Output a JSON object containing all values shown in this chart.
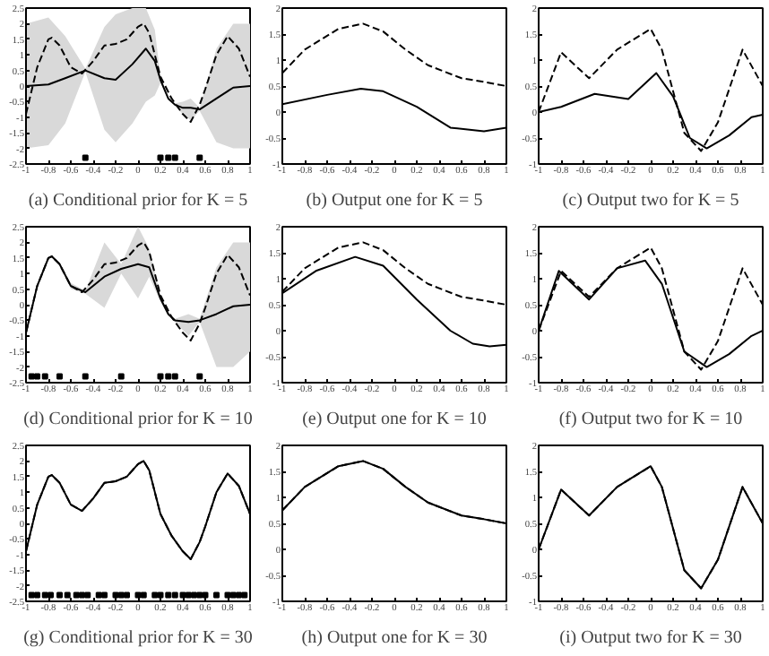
{
  "chart_data": [
    {
      "type": "line",
      "title": "(a) Conditional prior for K = 5",
      "xlim": [
        -1,
        1
      ],
      "ylim": [
        -2.5,
        2.5
      ],
      "xticks": [
        -1,
        -0.8,
        -0.6,
        -0.4,
        -0.2,
        0,
        0.2,
        0.4,
        0.6,
        0.8,
        1
      ],
      "yticks": [
        -2.5,
        -2,
        -1.5,
        -1,
        -0.5,
        0,
        0.5,
        1,
        1.5,
        2,
        2.5
      ],
      "grid": false,
      "series": [
        {
          "color": "#000000",
          "line_style": "solid",
          "x": [
            -1,
            -0.8,
            -0.65,
            -0.47,
            -0.3,
            -0.2,
            -0.05,
            0.07,
            0.15,
            0.2,
            0.27,
            0.33,
            0.4,
            0.47,
            0.55,
            0.7,
            0.85,
            1
          ],
          "values": [
            0,
            0.05,
            0.25,
            0.5,
            0.25,
            0.2,
            0.7,
            1.2,
            0.8,
            0.2,
            -0.4,
            -0.6,
            -0.7,
            -0.7,
            -0.75,
            -0.4,
            -0.05,
            0
          ],
          "lower": [
            -2,
            -1.9,
            -1.2,
            0.45,
            -1.4,
            -1.8,
            -1.2,
            -0.5,
            -0.3,
            0.1,
            -0.45,
            -0.65,
            -0.9,
            -1.1,
            -0.8,
            -1.8,
            -2,
            -2
          ],
          "upper": [
            2,
            2.2,
            1.6,
            0.55,
            1.9,
            2.3,
            2.5,
            2.5,
            1.8,
            0.3,
            -0.35,
            -0.55,
            -0.5,
            -0.4,
            -0.7,
            1.2,
            2,
            2
          ]
        },
        {
          "color": "#000000",
          "line_style": "dashed",
          "x": [
            -1,
            -0.9,
            -0.8,
            -0.77,
            -0.7,
            -0.6,
            -0.5,
            -0.4,
            -0.3,
            -0.2,
            -0.1,
            0,
            0.05,
            0.1,
            0.2,
            0.3,
            0.4,
            0.47,
            0.55,
            0.6,
            0.7,
            0.8,
            0.9,
            1
          ],
          "values": [
            -0.9,
            0.6,
            1.5,
            1.55,
            1.3,
            0.6,
            0.4,
            0.8,
            1.3,
            1.35,
            1.5,
            1.9,
            2.0,
            1.7,
            0.3,
            -0.4,
            -0.9,
            -1.15,
            -0.6,
            -0.1,
            1.0,
            1.6,
            1.2,
            0.3
          ]
        },
        {
          "type": "scatter",
          "marker": "square",
          "color": "#000000",
          "x": [
            -0.47,
            0.2,
            0.27,
            0.33,
            0.55
          ],
          "values": [
            -2.3,
            -2.3,
            -2.3,
            -2.3,
            -2.3
          ]
        }
      ]
    },
    {
      "type": "line",
      "title": "(b) Output one for K = 5",
      "xlim": [
        -1,
        1
      ],
      "ylim": [
        -1,
        2
      ],
      "xticks": [
        -1,
        -0.8,
        -0.6,
        -0.4,
        -0.2,
        0,
        0.2,
        0.4,
        0.6,
        0.8,
        1
      ],
      "yticks": [
        -1,
        -0.5,
        0,
        0.5,
        1,
        1.5,
        2
      ],
      "grid": false,
      "series": [
        {
          "color": "#000000",
          "line_style": "solid",
          "x": [
            -1,
            -0.6,
            -0.3,
            -0.1,
            0.2,
            0.5,
            0.8,
            1
          ],
          "values": [
            0.15,
            0.33,
            0.45,
            0.4,
            0.1,
            -0.3,
            -0.37,
            -0.3
          ]
        },
        {
          "color": "#000000",
          "line_style": "dashed",
          "x": [
            -1,
            -0.8,
            -0.5,
            -0.28,
            -0.1,
            0.1,
            0.3,
            0.6,
            0.8,
            1
          ],
          "values": [
            0.75,
            1.2,
            1.6,
            1.7,
            1.55,
            1.2,
            0.9,
            0.65,
            0.58,
            0.5
          ]
        }
      ]
    },
    {
      "type": "line",
      "title": "(c) Output two for K = 5",
      "xlim": [
        -1,
        1
      ],
      "ylim": [
        -1,
        2
      ],
      "xticks": [
        -1,
        -0.8,
        -0.6,
        -0.4,
        -0.2,
        0,
        0.2,
        0.4,
        0.6,
        0.8,
        1
      ],
      "yticks": [
        -1,
        -0.5,
        0,
        0.5,
        1,
        1.5,
        2
      ],
      "grid": false,
      "series": [
        {
          "color": "#000000",
          "line_style": "solid",
          "x": [
            -1,
            -0.8,
            -0.5,
            -0.2,
            0.05,
            0.2,
            0.35,
            0.5,
            0.7,
            0.9,
            1
          ],
          "values": [
            0,
            0.1,
            0.35,
            0.25,
            0.75,
            0.3,
            -0.5,
            -0.7,
            -0.45,
            -0.1,
            -0.05
          ]
        },
        {
          "color": "#000000",
          "line_style": "dashed",
          "x": [
            -1,
            -0.8,
            -0.55,
            -0.3,
            0,
            0.1,
            0.3,
            0.45,
            0.6,
            0.82,
            1
          ],
          "values": [
            0,
            1.15,
            0.65,
            1.2,
            1.6,
            1.2,
            -0.4,
            -0.75,
            -0.2,
            1.2,
            0.5
          ]
        }
      ]
    },
    {
      "type": "line",
      "title": "(d) Conditional prior for K = 10",
      "xlim": [
        -1,
        1
      ],
      "ylim": [
        -2.5,
        2.5
      ],
      "xticks": [
        -1,
        -0.8,
        -0.6,
        -0.4,
        -0.2,
        0,
        0.2,
        0.4,
        0.6,
        0.8,
        1
      ],
      "yticks": [
        -2.5,
        -2,
        -1.5,
        -1,
        -0.5,
        0,
        0.5,
        1,
        1.5,
        2,
        2.5
      ],
      "grid": false,
      "series": [
        {
          "color": "#000000",
          "line_style": "solid",
          "x": [
            -1,
            -0.9,
            -0.8,
            -0.77,
            -0.7,
            -0.6,
            -0.47,
            -0.3,
            -0.15,
            0,
            0.1,
            0.2,
            0.27,
            0.33,
            0.45,
            0.55,
            0.7,
            0.85,
            1
          ],
          "values": [
            -0.9,
            0.6,
            1.5,
            1.55,
            1.3,
            0.6,
            0.4,
            0.9,
            1.15,
            1.3,
            1.2,
            0.2,
            -0.3,
            -0.5,
            -0.55,
            -0.5,
            -0.3,
            -0.05,
            0
          ],
          "lower": [
            -0.9,
            0.6,
            1.5,
            1.55,
            1.3,
            0.5,
            0.35,
            -0.1,
            1.0,
            0.2,
            0.9,
            0.1,
            -0.35,
            -0.55,
            -1.0,
            -0.55,
            -2,
            -2,
            -1.5
          ],
          "upper": [
            -0.9,
            0.6,
            1.5,
            1.55,
            1.3,
            0.7,
            0.45,
            2.0,
            1.3,
            2.5,
            1.8,
            0.3,
            -0.25,
            -0.45,
            -0.3,
            -0.45,
            1.2,
            2.0,
            2.0
          ]
        },
        {
          "color": "#000000",
          "line_style": "dashed",
          "x": [
            -1,
            -0.9,
            -0.8,
            -0.77,
            -0.7,
            -0.6,
            -0.5,
            -0.4,
            -0.3,
            -0.2,
            -0.1,
            0,
            0.05,
            0.1,
            0.2,
            0.3,
            0.4,
            0.47,
            0.55,
            0.6,
            0.7,
            0.8,
            0.9,
            1
          ],
          "values": [
            -0.9,
            0.6,
            1.5,
            1.55,
            1.3,
            0.6,
            0.4,
            0.8,
            1.3,
            1.35,
            1.5,
            1.9,
            2.0,
            1.7,
            0.3,
            -0.4,
            -0.9,
            -1.15,
            -0.6,
            -0.1,
            1.0,
            1.6,
            1.2,
            0.3
          ]
        },
        {
          "type": "scatter",
          "marker": "square",
          "color": "#000000",
          "x": [
            -0.95,
            -0.9,
            -0.83,
            -0.7,
            -0.47,
            -0.15,
            0.2,
            0.27,
            0.33,
            0.55
          ],
          "values": [
            -2.3,
            -2.3,
            -2.3,
            -2.3,
            -2.3,
            -2.3,
            -2.3,
            -2.3,
            -2.3,
            -2.3
          ]
        }
      ]
    },
    {
      "type": "line",
      "title": "(e) Output one for K = 10",
      "xlim": [
        -1,
        1
      ],
      "ylim": [
        -1,
        2
      ],
      "xticks": [
        -1,
        -0.8,
        -0.6,
        -0.4,
        -0.2,
        0,
        0.2,
        0.4,
        0.6,
        0.8,
        1
      ],
      "yticks": [
        -1,
        -0.5,
        0,
        0.5,
        1,
        1.5,
        2
      ],
      "grid": false,
      "series": [
        {
          "color": "#000000",
          "line_style": "solid",
          "x": [
            -1,
            -0.7,
            -0.35,
            -0.1,
            0.2,
            0.5,
            0.7,
            0.85,
            1
          ],
          "values": [
            0.72,
            1.15,
            1.42,
            1.25,
            0.6,
            0.0,
            -0.25,
            -0.3,
            -0.27
          ]
        },
        {
          "color": "#000000",
          "line_style": "dashed",
          "x": [
            -1,
            -0.8,
            -0.5,
            -0.28,
            -0.1,
            0.1,
            0.3,
            0.6,
            0.8,
            1
          ],
          "values": [
            0.75,
            1.2,
            1.6,
            1.7,
            1.55,
            1.2,
            0.9,
            0.65,
            0.58,
            0.5
          ]
        }
      ]
    },
    {
      "type": "line",
      "title": "(f) Output two for K = 10",
      "xlim": [
        -1,
        1
      ],
      "ylim": [
        -1,
        2
      ],
      "xticks": [
        -1,
        -0.8,
        -0.6,
        -0.4,
        -0.2,
        0,
        0.2,
        0.4,
        0.6,
        0.8,
        1
      ],
      "yticks": [
        -1,
        -0.5,
        0,
        0.5,
        1,
        1.5,
        2
      ],
      "grid": false,
      "series": [
        {
          "color": "#000000",
          "line_style": "solid",
          "x": [
            -1,
            -0.82,
            -0.55,
            -0.3,
            -0.05,
            0.1,
            0.3,
            0.5,
            0.7,
            0.9,
            1
          ],
          "values": [
            0,
            1.15,
            0.6,
            1.2,
            1.35,
            0.9,
            -0.4,
            -0.7,
            -0.45,
            -0.1,
            0
          ]
        },
        {
          "color": "#000000",
          "line_style": "dashed",
          "x": [
            -1,
            -0.8,
            -0.55,
            -0.3,
            0,
            0.1,
            0.3,
            0.45,
            0.6,
            0.82,
            1
          ],
          "values": [
            0,
            1.15,
            0.65,
            1.2,
            1.6,
            1.2,
            -0.4,
            -0.75,
            -0.2,
            1.2,
            0.5
          ]
        }
      ]
    },
    {
      "type": "line",
      "title": "(g) Conditional prior for K = 30",
      "xlim": [
        -1,
        1
      ],
      "ylim": [
        -2.5,
        2.5
      ],
      "xticks": [
        -1,
        -0.8,
        -0.6,
        -0.4,
        -0.2,
        0,
        0.2,
        0.4,
        0.6,
        0.8,
        1
      ],
      "yticks": [
        -2.5,
        -2,
        -1.5,
        -1,
        -0.5,
        0,
        0.5,
        1,
        1.5,
        2,
        2.5
      ],
      "grid": false,
      "series": [
        {
          "color": "#000000",
          "line_style": "solid",
          "x": [
            -1,
            -0.9,
            -0.8,
            -0.77,
            -0.7,
            -0.6,
            -0.5,
            -0.4,
            -0.3,
            -0.2,
            -0.1,
            0,
            0.05,
            0.1,
            0.2,
            0.3,
            0.4,
            0.47,
            0.55,
            0.6,
            0.7,
            0.8,
            0.9,
            1
          ],
          "values": [
            -0.9,
            0.6,
            1.5,
            1.55,
            1.3,
            0.6,
            0.4,
            0.8,
            1.3,
            1.35,
            1.5,
            1.9,
            2.0,
            1.7,
            0.3,
            -0.4,
            -0.9,
            -1.15,
            -0.6,
            -0.1,
            1.0,
            1.6,
            1.2,
            0.3
          ]
        },
        {
          "color": "#000000",
          "line_style": "dashed",
          "x": [
            -1,
            -0.9,
            -0.8,
            -0.77,
            -0.7,
            -0.6,
            -0.5,
            -0.4,
            -0.3,
            -0.2,
            -0.1,
            0,
            0.05,
            0.1,
            0.2,
            0.3,
            0.4,
            0.47,
            0.55,
            0.6,
            0.7,
            0.8,
            0.9,
            1
          ],
          "values": [
            -0.9,
            0.6,
            1.5,
            1.55,
            1.3,
            0.6,
            0.4,
            0.8,
            1.3,
            1.35,
            1.5,
            1.9,
            2.0,
            1.7,
            0.3,
            -0.4,
            -0.9,
            -1.15,
            -0.6,
            -0.1,
            1.0,
            1.6,
            1.2,
            0.3
          ]
        },
        {
          "type": "scatter",
          "marker": "square",
          "color": "#000000",
          "x": [
            -0.95,
            -0.9,
            -0.83,
            -0.78,
            -0.7,
            -0.63,
            -0.55,
            -0.5,
            -0.45,
            -0.35,
            -0.3,
            -0.2,
            -0.15,
            -0.1,
            0,
            0.05,
            0.15,
            0.2,
            0.27,
            0.33,
            0.4,
            0.45,
            0.5,
            0.55,
            0.6,
            0.7,
            0.8,
            0.85,
            0.9,
            0.95
          ],
          "values": [
            -2.3,
            -2.3,
            -2.3,
            -2.3,
            -2.3,
            -2.3,
            -2.3,
            -2.3,
            -2.3,
            -2.3,
            -2.3,
            -2.3,
            -2.3,
            -2.3,
            -2.3,
            -2.3,
            -2.3,
            -2.3,
            -2.3,
            -2.3,
            -2.3,
            -2.3,
            -2.3,
            -2.3,
            -2.3,
            -2.3,
            -2.3,
            -2.3,
            -2.3,
            -2.3
          ]
        }
      ]
    },
    {
      "type": "line",
      "title": "(h) Output one for K = 30",
      "xlim": [
        -1,
        1
      ],
      "ylim": [
        -1,
        2
      ],
      "xticks": [
        -1,
        -0.8,
        -0.6,
        -0.4,
        -0.2,
        0,
        0.2,
        0.4,
        0.6,
        0.8,
        1
      ],
      "yticks": [
        -1,
        -0.5,
        0,
        0.5,
        1,
        1.5,
        2
      ],
      "grid": false,
      "series": [
        {
          "color": "#000000",
          "line_style": "solid",
          "x": [
            -1,
            -0.8,
            -0.5,
            -0.28,
            -0.1,
            0.1,
            0.3,
            0.6,
            0.8,
            1
          ],
          "values": [
            0.75,
            1.2,
            1.6,
            1.7,
            1.55,
            1.2,
            0.9,
            0.65,
            0.58,
            0.5
          ]
        },
        {
          "color": "#000000",
          "line_style": "dashed",
          "x": [
            -1,
            -0.8,
            -0.5,
            -0.28,
            -0.1,
            0.1,
            0.3,
            0.6,
            0.8,
            1
          ],
          "values": [
            0.75,
            1.2,
            1.6,
            1.7,
            1.55,
            1.2,
            0.9,
            0.65,
            0.58,
            0.5
          ]
        }
      ]
    },
    {
      "type": "line",
      "title": "(i) Output two for K = 30",
      "xlim": [
        -1,
        1
      ],
      "ylim": [
        -1,
        2
      ],
      "xticks": [
        -1,
        -0.8,
        -0.6,
        -0.4,
        -0.2,
        0,
        0.2,
        0.4,
        0.6,
        0.8,
        1
      ],
      "yticks": [
        -1,
        -0.5,
        0,
        0.5,
        1,
        1.5,
        2
      ],
      "grid": false,
      "series": [
        {
          "color": "#000000",
          "line_style": "solid",
          "x": [
            -1,
            -0.8,
            -0.55,
            -0.3,
            0,
            0.1,
            0.3,
            0.45,
            0.6,
            0.82,
            1
          ],
          "values": [
            0,
            1.15,
            0.65,
            1.2,
            1.6,
            1.2,
            -0.4,
            -0.75,
            -0.2,
            1.2,
            0.5
          ]
        },
        {
          "color": "#000000",
          "line_style": "dashed",
          "x": [
            -1,
            -0.8,
            -0.55,
            -0.3,
            0,
            0.1,
            0.3,
            0.45,
            0.6,
            0.82,
            1
          ],
          "values": [
            0,
            1.15,
            0.65,
            1.2,
            1.6,
            1.2,
            -0.4,
            -0.75,
            -0.2,
            1.2,
            0.5
          ]
        }
      ]
    }
  ]
}
